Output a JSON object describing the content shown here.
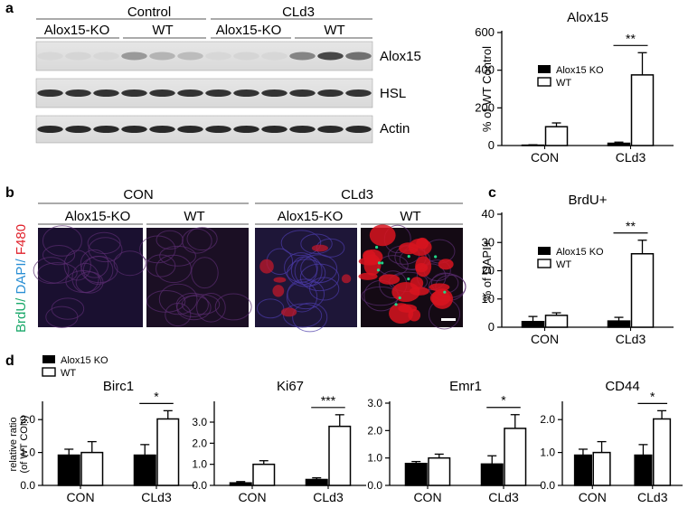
{
  "panels": {
    "a": "a",
    "b": "b",
    "c": "c",
    "d": "d"
  },
  "panel_a": {
    "conditions": [
      "Control",
      "CLd3"
    ],
    "genotypes": [
      "Alox15-KO",
      "WT",
      "Alox15-KO",
      "WT"
    ],
    "bands": [
      "Alox15",
      "HSL",
      "Actin"
    ]
  },
  "panel_b": {
    "conditions": [
      "CON",
      "CLd3"
    ],
    "genotypes": [
      "Alox15-KO",
      "WT",
      "Alox15-KO",
      "WT"
    ],
    "stain_label": {
      "brdu": "BrdU/",
      "dapi": " DAPI/",
      "f480": " F480"
    },
    "colors": {
      "brdu": "#1aa86a",
      "dapi": "#2a8fd4",
      "f480": "#e0202a"
    }
  },
  "legend": {
    "ko": "Alox15 KO",
    "wt": "WT"
  },
  "chart_data": [
    {
      "type": "bar",
      "title": "Alox15",
      "ylabel": "% of WT Control",
      "categories": [
        "CON",
        "CLd3"
      ],
      "ylim": [
        0,
        600
      ],
      "yticks": [
        "0",
        "200",
        "400",
        "600"
      ],
      "series": [
        {
          "name": "Alox15 KO",
          "values": [
            2,
            12
          ],
          "errors": [
            2,
            6
          ]
        },
        {
          "name": "WT",
          "values": [
            100,
            375
          ],
          "errors": [
            20,
            118
          ]
        }
      ],
      "significance": "**"
    },
    {
      "type": "bar",
      "title": "BrdU+",
      "ylabel": "% of DAPI+",
      "categories": [
        "CON",
        "CLd3"
      ],
      "ylim": [
        0,
        40
      ],
      "yticks": [
        "0",
        "10",
        "20",
        "30",
        "40"
      ],
      "series": [
        {
          "name": "Alox15 KO",
          "values": [
            2,
            2.2
          ],
          "errors": [
            1.8,
            1.3
          ]
        },
        {
          "name": "WT",
          "values": [
            4.2,
            26
          ],
          "errors": [
            0.9,
            4.8
          ]
        }
      ],
      "significance": "**"
    },
    {
      "type": "bar",
      "title": "Birc1",
      "ylabel": "relative ratio (of WT CON)",
      "categories": [
        "CON",
        "CLd3"
      ],
      "ylim": [
        0,
        2.5
      ],
      "yticks": [
        "0.0",
        "1.0",
        "2.0"
      ],
      "series": [
        {
          "name": "Alox15 KO",
          "values": [
            0.92,
            0.92
          ],
          "errors": [
            0.18,
            0.32
          ]
        },
        {
          "name": "WT",
          "values": [
            1.0,
            2.02
          ],
          "errors": [
            0.33,
            0.25
          ]
        }
      ],
      "significance": "*"
    },
    {
      "type": "bar",
      "title": "Ki67",
      "categories": [
        "CON",
        "CLd3"
      ],
      "ylim": [
        0,
        3.9
      ],
      "yticks": [
        "0.0",
        "1.0",
        "2.0",
        "3.0"
      ],
      "series": [
        {
          "name": "Alox15 KO",
          "values": [
            0.12,
            0.28
          ],
          "errors": [
            0.06,
            0.08
          ]
        },
        {
          "name": "WT",
          "values": [
            1.0,
            2.8
          ],
          "errors": [
            0.17,
            0.55
          ]
        }
      ],
      "significance": "***"
    },
    {
      "type": "bar",
      "title": "Emr1",
      "categories": [
        "CON",
        "CLd3"
      ],
      "ylim": [
        0,
        3.0
      ],
      "yticks": [
        "0.0",
        "1.0",
        "2.0",
        "3.0"
      ],
      "series": [
        {
          "name": "Alox15 KO",
          "values": [
            0.8,
            0.78
          ],
          "errors": [
            0.07,
            0.3
          ]
        },
        {
          "name": "WT",
          "values": [
            1.0,
            2.08
          ],
          "errors": [
            0.14,
            0.5
          ]
        }
      ],
      "significance": "*"
    },
    {
      "type": "bar",
      "title": "CD44",
      "categories": [
        "CON",
        "CLd3"
      ],
      "ylim": [
        0,
        2.5
      ],
      "yticks": [
        "0.0",
        "1.0",
        "2.0"
      ],
      "series": [
        {
          "name": "Alox15 KO",
          "values": [
            0.92,
            0.92
          ],
          "errors": [
            0.18,
            0.32
          ]
        },
        {
          "name": "WT",
          "values": [
            1.0,
            2.02
          ],
          "errors": [
            0.33,
            0.25
          ]
        }
      ],
      "significance": "*"
    }
  ]
}
